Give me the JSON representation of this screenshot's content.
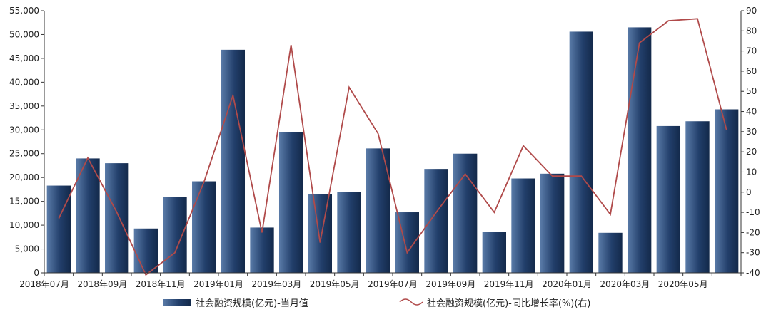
{
  "chart_data": {
    "type": "bar",
    "title": "",
    "xlabel": "",
    "ylabel": "",
    "categories": [
      "2018年07月",
      "2018年08月",
      "2018年09月",
      "2018年10月",
      "2018年11月",
      "2018年12月",
      "2019年01月",
      "2019年02月",
      "2019年03月",
      "2019年04月",
      "2019年05月",
      "2019年06月",
      "2019年07月",
      "2019年08月",
      "2019年09月",
      "2019年10月",
      "2019年11月",
      "2019年12月",
      "2020年01月",
      "2020年02月",
      "2020年03月",
      "2020年04月",
      "2020年05月",
      "2020年06月"
    ],
    "x_tick_labels": [
      "2018年07月",
      "2018年09月",
      "2018年11月",
      "2019年01月",
      "2019年03月",
      "2019年05月",
      "2019年07月",
      "2019年09月",
      "2019年11月",
      "2020年01月",
      "2020年03月",
      "2020年05月"
    ],
    "y_left": {
      "min": 0,
      "max": 55000,
      "step": 5000,
      "tick_labels": [
        "0",
        "5,000",
        "10,000",
        "15,000",
        "20,000",
        "25,000",
        "30,000",
        "35,000",
        "40,000",
        "45,000",
        "50,000",
        "55,000"
      ]
    },
    "y_right": {
      "min": -40,
      "max": 90,
      "step": 10,
      "tick_labels": [
        "-40",
        "-30",
        "-20",
        "-10",
        "0",
        "10",
        "20",
        "30",
        "40",
        "50",
        "60",
        "70",
        "80",
        "90"
      ]
    },
    "series": [
      {
        "name": "社会融资规模(亿元)-当月值",
        "type": "bar",
        "axis": "left",
        "color": "#1f3d66",
        "values": [
          18300,
          24000,
          23000,
          9300,
          15900,
          19200,
          46800,
          9500,
          29500,
          16500,
          17000,
          26100,
          12700,
          21800,
          25000,
          8600,
          19800,
          20800,
          50600,
          8400,
          51500,
          30800,
          31800,
          34300
        ]
      },
      {
        "name": "社会融资规模(亿元)-同比增长率(%)(右)",
        "type": "line",
        "axis": "right",
        "color": "#b04a4a",
        "values": [
          -13,
          17,
          -10,
          -41,
          -30,
          5,
          48,
          -20,
          73,
          -25,
          52,
          29,
          -30,
          -10,
          9,
          -10,
          23,
          8,
          8,
          -11,
          74,
          85,
          86,
          31
        ]
      }
    ],
    "grid": false,
    "legend": "bottom"
  }
}
